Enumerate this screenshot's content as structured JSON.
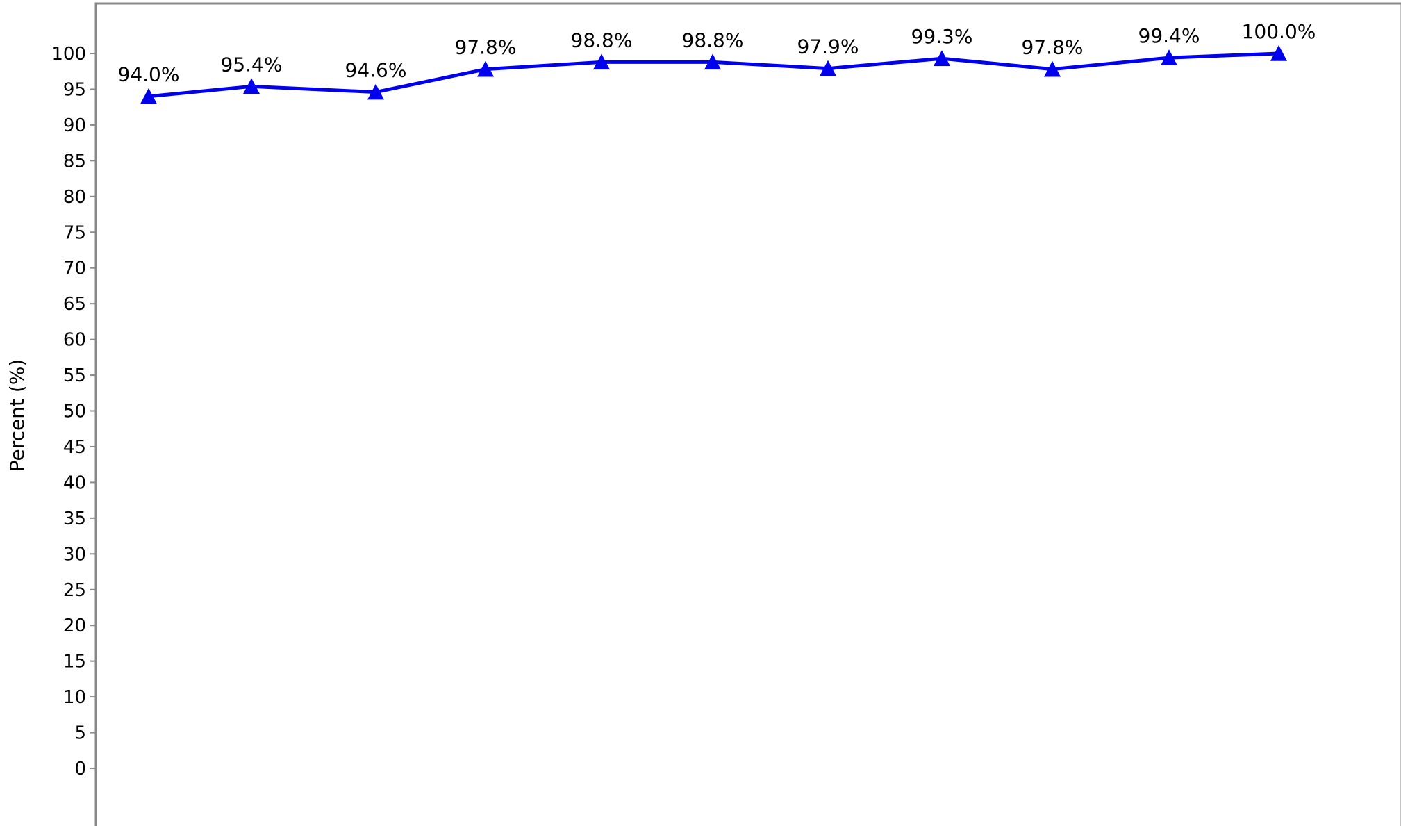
{
  "chart_data": {
    "type": "line",
    "title": "",
    "xlabel": "",
    "ylabel": "Percent (%)",
    "ylim": [
      0,
      100
    ],
    "yticks": [
      0,
      5,
      10,
      15,
      20,
      25,
      30,
      35,
      40,
      45,
      50,
      55,
      60,
      65,
      70,
      75,
      80,
      85,
      90,
      95,
      100
    ],
    "grid": false,
    "marker": "triangle",
    "series": [
      {
        "values": [
          94.0,
          95.4,
          94.6,
          97.8,
          98.8,
          98.8,
          97.9,
          99.3,
          97.8,
          99.4,
          100.0
        ],
        "labels": [
          "94.0%",
          "95.4%",
          "94.6%",
          "97.8%",
          "98.8%",
          "98.8%",
          "97.9%",
          "99.3%",
          "97.8%",
          "99.4%",
          "100.0%"
        ],
        "color": "#0000ee"
      }
    ],
    "colors": {
      "frame": "#888888",
      "line": "#0000ee",
      "text": "#000000"
    }
  }
}
